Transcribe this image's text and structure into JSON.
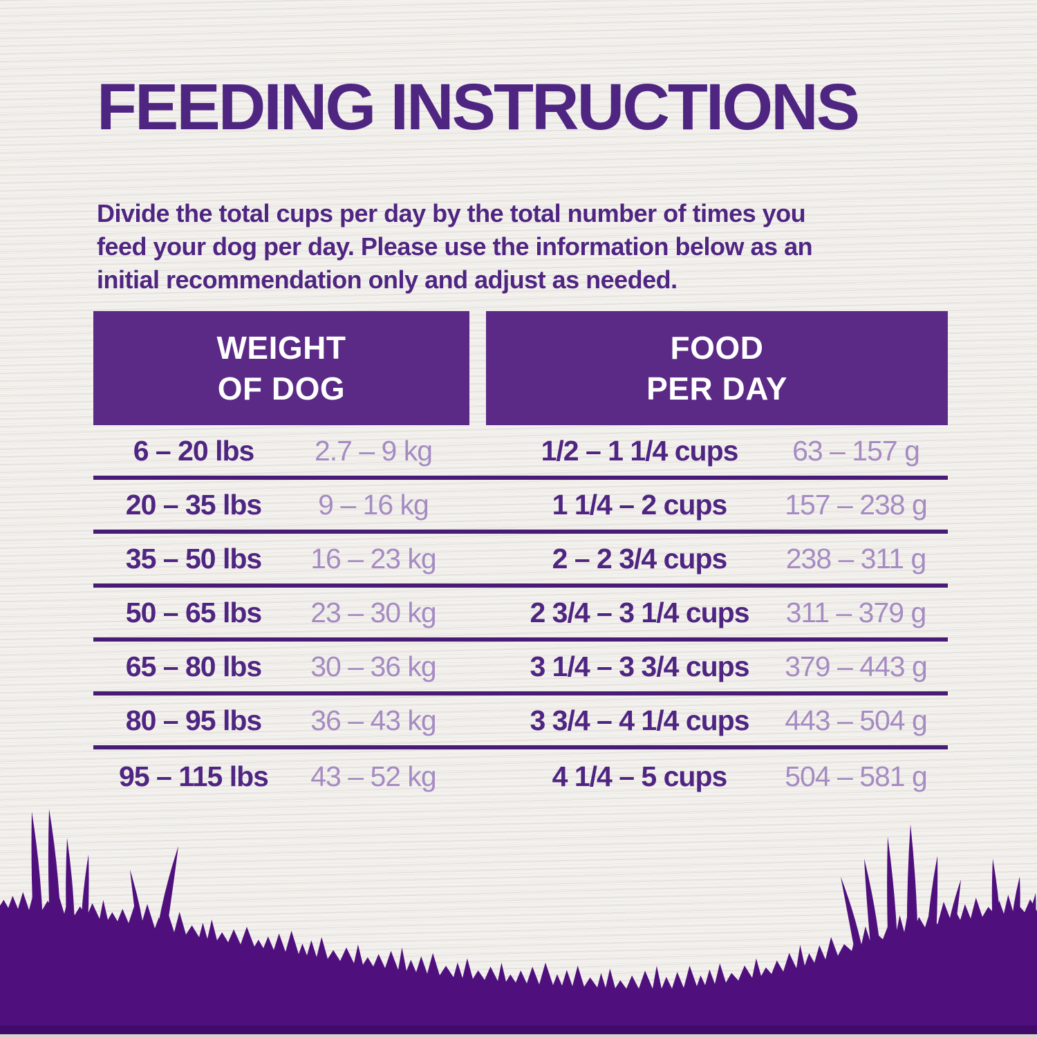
{
  "page": {
    "title": "FEEDING INSTRUCTIONS",
    "intro_lines": [
      "Divide the total cups per day by the total number of times you",
      "feed your dog per day. Please use the information below as an",
      "initial recommendation only and adjust as needed."
    ]
  },
  "table": {
    "weight_header": {
      "line1": "WEIGHT",
      "line2": "OF DOG"
    },
    "food_header": {
      "line1": "FOOD",
      "line2": "PER DAY"
    },
    "rows": [
      {
        "lbs": "6 – 20 lbs",
        "kg": "2.7 – 9 kg",
        "cups": "1/2 – 1 1/4 cups",
        "grams": "63 – 157 g"
      },
      {
        "lbs": "20 – 35 lbs",
        "kg": "9 – 16 kg",
        "cups": "1 1/4 – 2 cups",
        "grams": "157 – 238 g"
      },
      {
        "lbs": "35 – 50 lbs",
        "kg": "16 – 23 kg",
        "cups": "2 – 2 3/4 cups",
        "grams": "238 – 311 g"
      },
      {
        "lbs": "50 – 65 lbs",
        "kg": "23 – 30 kg",
        "cups": "2 3/4 – 3 1/4 cups",
        "grams": "311 – 379 g"
      },
      {
        "lbs": "65 – 80 lbs",
        "kg": "30 – 36 kg",
        "cups": "3 1/4 – 3 3/4 cups",
        "grams": "379 – 443 g"
      },
      {
        "lbs": "80 – 95 lbs",
        "kg": "36 – 43 kg",
        "cups": "3 3/4 – 4 1/4 cups",
        "grams": "443 – 504 g"
      },
      {
        "lbs": "95 – 115 lbs",
        "kg": "43 – 52 kg",
        "cups": "4 1/4 – 5 cups",
        "grams": "504 – 581 g"
      }
    ]
  },
  "colors": {
    "title_purple": "#4f2582",
    "header_background": "#5b2a86",
    "light_purple": "#a58bc2",
    "separator_purple": "#481b76",
    "grass_purple": "#4f107e",
    "background": "#f3f1ee",
    "header_text": "#ffffff"
  }
}
